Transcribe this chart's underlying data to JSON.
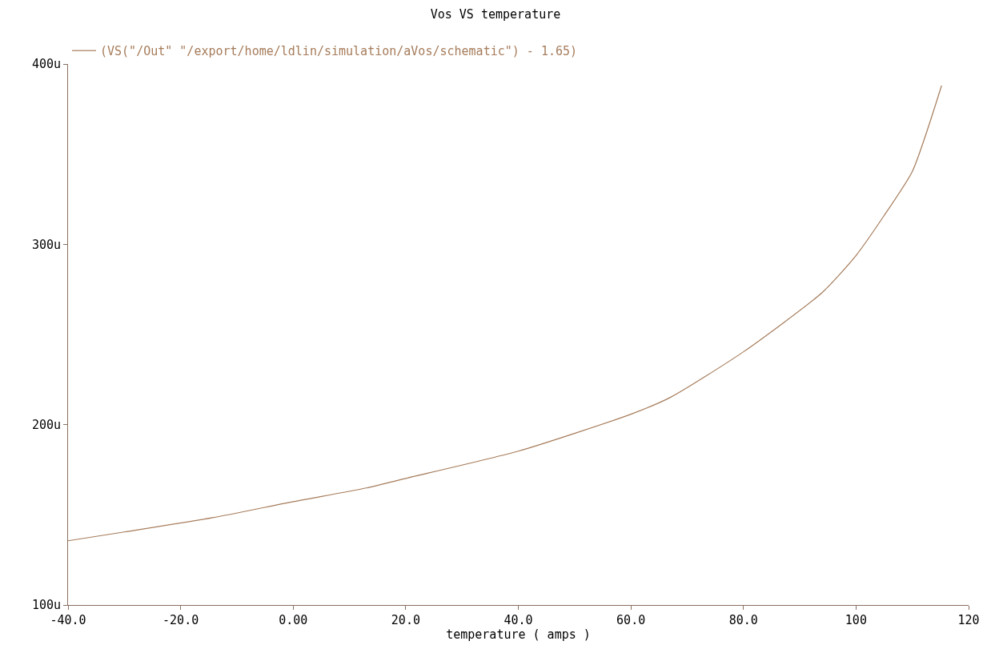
{
  "chart_data": {
    "type": "line",
    "title": "Vos VS temperature",
    "xlabel": "temperature ( amps )",
    "x": [
      -40,
      -30,
      -14.3,
      0,
      13,
      20,
      40,
      60,
      67,
      80,
      94,
      100,
      105,
      110,
      115.2
    ],
    "series": [
      {
        "name": "(VS(\"/Out\" \"/export/home/ldlin/simulation/aVos/schematic\") - 1.65)",
        "color": "#a67c5b",
        "values": [
          135.6,
          140.5,
          148.4,
          157.3,
          164.9,
          170.2,
          185.3,
          205.8,
          215.1,
          240.4,
          273.3,
          293.8,
          316,
          340.4,
          388
        ]
      }
    ],
    "xlim": [
      -40,
      120
    ],
    "xticks": [
      {
        "value": -40,
        "label": "-40.0"
      },
      {
        "value": -20,
        "label": "-20.0"
      },
      {
        "value": 0,
        "label": "0.00"
      },
      {
        "value": 20,
        "label": "20.0"
      },
      {
        "value": 40,
        "label": "40.0"
      },
      {
        "value": 60,
        "label": "60.0"
      },
      {
        "value": 80,
        "label": "80.0"
      },
      100,
      120
    ],
    "ylim": [
      100,
      400
    ],
    "yticks": [
      {
        "value": 100,
        "label": "100u"
      },
      {
        "value": 200,
        "label": "200u"
      },
      {
        "value": 300,
        "label": "300u"
      },
      {
        "value": 400,
        "label": "400u"
      }
    ],
    "legend": "top left",
    "line_style": "solid"
  }
}
